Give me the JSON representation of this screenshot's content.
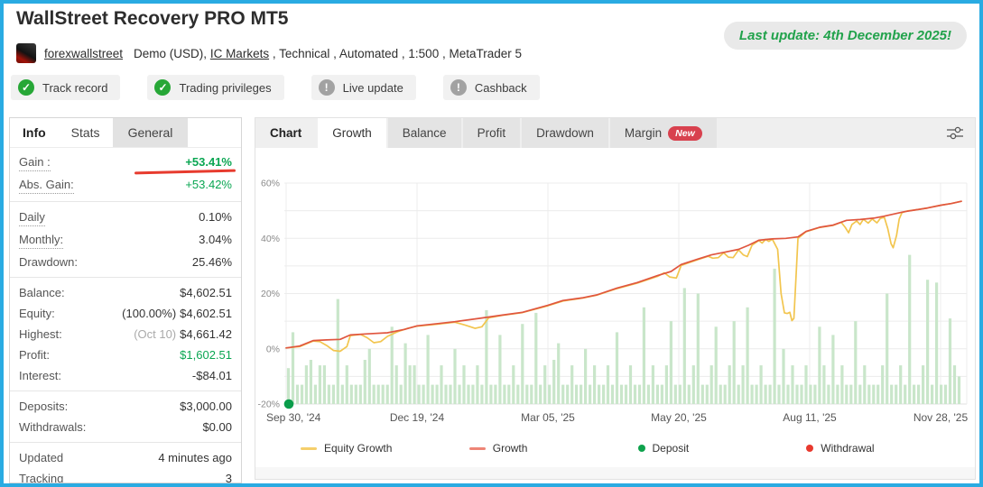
{
  "header": {
    "title": "WallStreet Recovery PRO MT5",
    "last_update": "Last update: 4th December 2025!",
    "account": {
      "owner": "forexwallstreet",
      "type": "Demo (USD), ",
      "broker": "IC Markets",
      "details": " , Technical , Automated , 1:500 , MetaTrader 5"
    },
    "badges": [
      {
        "label": "Track record",
        "status": "verified"
      },
      {
        "label": "Trading privileges",
        "status": "verified"
      },
      {
        "label": "Live update",
        "status": "inactive"
      },
      {
        "label": "Cashback",
        "status": "inactive"
      }
    ]
  },
  "stats_panel": {
    "tabs": [
      {
        "label": "Info",
        "active": true
      },
      {
        "label": "Stats",
        "active": false
      },
      {
        "label": "General",
        "active": false,
        "gray": true
      }
    ],
    "groups": [
      {
        "rows": [
          {
            "label": "Gain :",
            "value": "+53.41%",
            "value_class": "green bold",
            "dotted": true,
            "marker": true
          },
          {
            "label": "Abs. Gain:",
            "value": "+53.42%",
            "value_class": "green",
            "dotted": true
          }
        ]
      },
      {
        "rows": [
          {
            "label": "Daily",
            "value": "0.10%",
            "dotted": true
          },
          {
            "label": "Monthly:",
            "value": "3.04%",
            "dotted": true
          },
          {
            "label": "Drawdown:",
            "value": "25.46%"
          }
        ]
      },
      {
        "rows": [
          {
            "label": "Balance:",
            "value": "$4,602.51"
          },
          {
            "label": "Equity:",
            "prefix": "(100.00%)",
            "value": "$4,602.51"
          },
          {
            "label": "Highest:",
            "prefix": "(Oct 10)",
            "prefix_class": "muted",
            "value": "$4,661.42"
          },
          {
            "label": "Profit:",
            "value": "$1,602.51",
            "value_class": "green"
          },
          {
            "label": "Interest:",
            "value": "-$84.01"
          }
        ]
      },
      {
        "rows": [
          {
            "label": "Deposits:",
            "value": "$3,000.00"
          },
          {
            "label": "Withdrawals:",
            "value": "$0.00"
          }
        ]
      },
      {
        "rows": [
          {
            "label": "Updated",
            "value": "4 minutes ago"
          },
          {
            "label": "Tracking",
            "value": "3"
          }
        ]
      }
    ]
  },
  "chart_panel": {
    "tabs": [
      {
        "label": "Chart",
        "style": "title"
      },
      {
        "label": "Growth",
        "active": true
      },
      {
        "label": "Balance"
      },
      {
        "label": "Profit"
      },
      {
        "label": "Drawdown"
      },
      {
        "label": "Margin",
        "badge": "New"
      }
    ],
    "legend": [
      {
        "label": "Equity Growth",
        "swatch": "line",
        "color": "#f5cf6b"
      },
      {
        "label": "Growth",
        "swatch": "line",
        "color": "#ee8576"
      },
      {
        "label": "Deposit",
        "swatch": "dot",
        "color": "#0ea24c"
      },
      {
        "label": "Withdrawal",
        "swatch": "dot",
        "color": "#e8392e"
      }
    ]
  },
  "chart_data": {
    "type": "line",
    "title": "Growth",
    "ylim": [
      -20,
      60
    ],
    "y_tick_labels": [
      "60%",
      "40%",
      "20%",
      "0%",
      "-20%"
    ],
    "y_tick_values": [
      60,
      40,
      20,
      0,
      -20
    ],
    "x_ticks": [
      "Sep 30, '24",
      "Dec 19, '24",
      "Mar 05, '25",
      "May 20, '25",
      "Aug 11, '25",
      "Nov 28, '25"
    ],
    "grid": true,
    "series": [
      {
        "name": "Equity Growth",
        "color": "#f2c54e",
        "points": [
          [
            0,
            0.3
          ],
          [
            0.02,
            0.8
          ],
          [
            0.04,
            2.8
          ],
          [
            0.05,
            2.6
          ],
          [
            0.06,
            1.2
          ],
          [
            0.07,
            -0.6
          ],
          [
            0.08,
            -0.9
          ],
          [
            0.09,
            0.8
          ],
          [
            0.095,
            4.8
          ],
          [
            0.11,
            5.2
          ],
          [
            0.12,
            4
          ],
          [
            0.13,
            2.2
          ],
          [
            0.14,
            2.6
          ],
          [
            0.15,
            4.5
          ],
          [
            0.165,
            6.2
          ],
          [
            0.18,
            7.4
          ],
          [
            0.194,
            8.2
          ],
          [
            0.22,
            8.8
          ],
          [
            0.25,
            9.6
          ],
          [
            0.265,
            8.6
          ],
          [
            0.28,
            7.4
          ],
          [
            0.29,
            8
          ],
          [
            0.3,
            11.2
          ],
          [
            0.32,
            12.1
          ],
          [
            0.35,
            13.1
          ],
          [
            0.388,
            15.6
          ],
          [
            0.41,
            17.3
          ],
          [
            0.44,
            18.4
          ],
          [
            0.46,
            19.4
          ],
          [
            0.49,
            21.8
          ],
          [
            0.52,
            23.8
          ],
          [
            0.55,
            26.2
          ],
          [
            0.56,
            27.5
          ],
          [
            0.568,
            26
          ],
          [
            0.578,
            25.6
          ],
          [
            0.585,
            30.2
          ],
          [
            0.61,
            32.3
          ],
          [
            0.625,
            33.5
          ],
          [
            0.632,
            32.8
          ],
          [
            0.64,
            33
          ],
          [
            0.648,
            34.8
          ],
          [
            0.655,
            33.2
          ],
          [
            0.662,
            33
          ],
          [
            0.67,
            35.8
          ],
          [
            0.677,
            34
          ],
          [
            0.683,
            33.4
          ],
          [
            0.69,
            37.5
          ],
          [
            0.7,
            39.2
          ],
          [
            0.705,
            38.3
          ],
          [
            0.71,
            39.6
          ],
          [
            0.715,
            38.9
          ],
          [
            0.72,
            39.7
          ],
          [
            0.728,
            36
          ],
          [
            0.733,
            20
          ],
          [
            0.738,
            13
          ],
          [
            0.742,
            12.8
          ],
          [
            0.746,
            13.2
          ],
          [
            0.749,
            10.2
          ],
          [
            0.752,
            11
          ],
          [
            0.755,
            25
          ],
          [
            0.758,
            40
          ],
          [
            0.77,
            42.4
          ],
          [
            0.79,
            43.9
          ],
          [
            0.81,
            44.7
          ],
          [
            0.822,
            45.8
          ],
          [
            0.828,
            44
          ],
          [
            0.833,
            42
          ],
          [
            0.838,
            45
          ],
          [
            0.845,
            46.3
          ],
          [
            0.85,
            45
          ],
          [
            0.855,
            46.9
          ],
          [
            0.862,
            45.5
          ],
          [
            0.868,
            47
          ],
          [
            0.875,
            45.6
          ],
          [
            0.88,
            47.2
          ],
          [
            0.886,
            47.6
          ],
          [
            0.891,
            43.5
          ],
          [
            0.896,
            38
          ],
          [
            0.899,
            36.6
          ],
          [
            0.904,
            41
          ],
          [
            0.908,
            47
          ],
          [
            0.912,
            49.3
          ],
          [
            0.92,
            49.9
          ],
          [
            0.93,
            50.2
          ],
          [
            0.95,
            51
          ],
          [
            0.97,
            52
          ],
          [
            0.985,
            52.6
          ],
          [
            1,
            53.4
          ]
        ]
      },
      {
        "name": "Growth",
        "color": "#e0563f",
        "points": [
          [
            0,
            0.3
          ],
          [
            0.02,
            1
          ],
          [
            0.04,
            3
          ],
          [
            0.06,
            3.2
          ],
          [
            0.08,
            3.4
          ],
          [
            0.095,
            5
          ],
          [
            0.12,
            5.4
          ],
          [
            0.15,
            5.8
          ],
          [
            0.175,
            7
          ],
          [
            0.194,
            8.3
          ],
          [
            0.22,
            9
          ],
          [
            0.25,
            9.8
          ],
          [
            0.285,
            11
          ],
          [
            0.32,
            12.2
          ],
          [
            0.35,
            13.2
          ],
          [
            0.388,
            15.8
          ],
          [
            0.41,
            17.5
          ],
          [
            0.44,
            18.5
          ],
          [
            0.46,
            19.5
          ],
          [
            0.49,
            22
          ],
          [
            0.52,
            24
          ],
          [
            0.55,
            26.5
          ],
          [
            0.57,
            28
          ],
          [
            0.585,
            30.5
          ],
          [
            0.61,
            32.5
          ],
          [
            0.63,
            34
          ],
          [
            0.65,
            35
          ],
          [
            0.67,
            36
          ],
          [
            0.685,
            37.5
          ],
          [
            0.7,
            39.3
          ],
          [
            0.72,
            39.8
          ],
          [
            0.74,
            40
          ],
          [
            0.758,
            40.5
          ],
          [
            0.77,
            42.5
          ],
          [
            0.79,
            44
          ],
          [
            0.81,
            44.8
          ],
          [
            0.83,
            46.5
          ],
          [
            0.85,
            46.8
          ],
          [
            0.87,
            47.3
          ],
          [
            0.885,
            48
          ],
          [
            0.9,
            48.8
          ],
          [
            0.915,
            49.6
          ],
          [
            0.93,
            50.2
          ],
          [
            0.95,
            51
          ],
          [
            0.97,
            52
          ],
          [
            0.985,
            52.6
          ],
          [
            1,
            53.4
          ]
        ]
      }
    ],
    "bars": {
      "name": "trade-activity",
      "color": "#c9e6ca",
      "baseline": -20,
      "heights": [
        13,
        26,
        7,
        7,
        14,
        16,
        7,
        14,
        14,
        7,
        7,
        38,
        7,
        14,
        7,
        7,
        7,
        16,
        20,
        7,
        7,
        7,
        7,
        28,
        14,
        7,
        22,
        14,
        14,
        7,
        7,
        25,
        7,
        7,
        14,
        7,
        7,
        20,
        7,
        14,
        7,
        7,
        14,
        7,
        34,
        7,
        7,
        25,
        7,
        7,
        14,
        7,
        29,
        7,
        7,
        33,
        7,
        14,
        7,
        16,
        22,
        7,
        7,
        14,
        7,
        7,
        20,
        7,
        14,
        7,
        7,
        14,
        7,
        26,
        7,
        7,
        14,
        7,
        7,
        35,
        7,
        14,
        7,
        7,
        14,
        30,
        7,
        7,
        42,
        7,
        14,
        40,
        7,
        7,
        14,
        28,
        7,
        7,
        14,
        30,
        7,
        14,
        35,
        7,
        7,
        14,
        7,
        7,
        49,
        7,
        20,
        7,
        14,
        7,
        7,
        14,
        7,
        7,
        28,
        14,
        7,
        25,
        7,
        14,
        7,
        7,
        30,
        7,
        14,
        7,
        7,
        7,
        14,
        40,
        7,
        7,
        14,
        7,
        54,
        7,
        7,
        14,
        45,
        7,
        44,
        7,
        7,
        31,
        14,
        10
      ]
    },
    "markers": [
      {
        "type": "deposit",
        "t": 0.004,
        "v": -20,
        "color": "#0a9d4b"
      }
    ]
  }
}
